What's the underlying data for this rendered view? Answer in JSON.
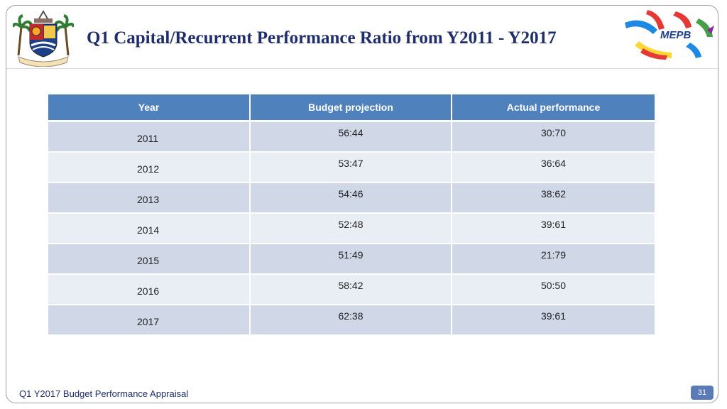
{
  "slide": {
    "title": "Q1 Capital/Recurrent Performance Ratio from Y2011 - Y2017",
    "footer": "Q1 Y2017 Budget Performance Appraisal",
    "page_number": "31"
  },
  "logos": {
    "left_emblem": "state-crest-icon",
    "right_emblem": "mepb-logo-icon",
    "right_emblem_text": "MEPB"
  },
  "table": {
    "headers": [
      "Year",
      "Budget projection",
      "Actual performance"
    ],
    "rows": [
      {
        "year": "2011",
        "budget": "56:44",
        "actual": "30:70"
      },
      {
        "year": "2012",
        "budget": "53:47",
        "actual": "36:64"
      },
      {
        "year": "2013",
        "budget": "54:46",
        "actual": "38:62"
      },
      {
        "year": "2014",
        "budget": "52:48",
        "actual": "39:61"
      },
      {
        "year": "2015",
        "budget": "51:49",
        "actual": "21:79"
      },
      {
        "year": "2016",
        "budget": "58:42",
        "actual": "50:50"
      },
      {
        "year": "2017",
        "budget": "62:38",
        "actual": "39:61"
      }
    ]
  },
  "colors": {
    "header_fill": "#4f81bd",
    "row_band_dark": "#d0d8e8",
    "row_band_light": "#e9edf4",
    "title_color": "#1f2e6b"
  }
}
